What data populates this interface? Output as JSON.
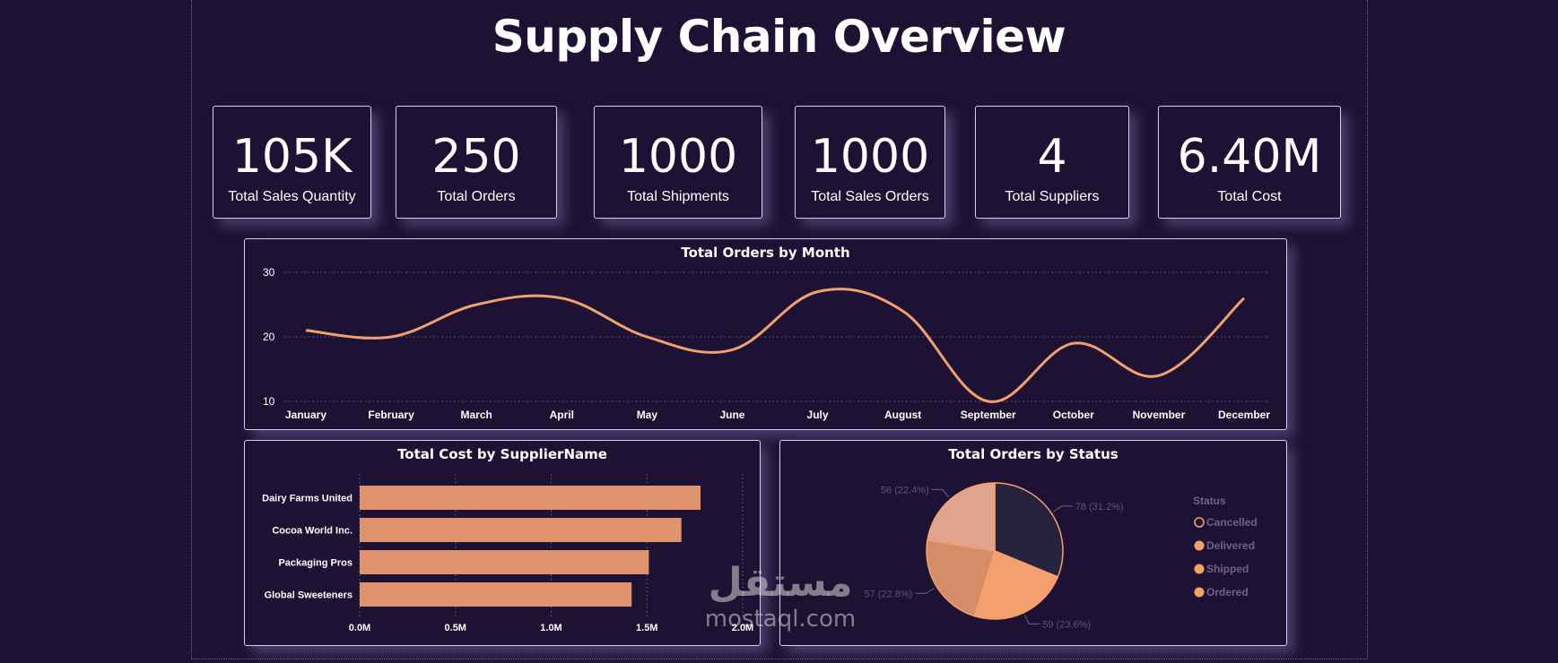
{
  "page": {
    "title": "Supply Chain Overview"
  },
  "kpis": [
    {
      "value": "105K",
      "label": "Total Sales Quantity"
    },
    {
      "value": "250",
      "label": "Total Orders"
    },
    {
      "value": "1000",
      "label": "Total Shipments"
    },
    {
      "value": "1000",
      "label": "Total Sales Orders"
    },
    {
      "value": "4",
      "label": "Total Suppliers"
    },
    {
      "value": "6.40M",
      "label": "Total Cost"
    }
  ],
  "watermark": {
    "arabic": "مستقل",
    "latin": "mostaql.com"
  },
  "chart_data": [
    {
      "type": "line",
      "title": "Total Orders by Month",
      "categories": [
        "January",
        "February",
        "March",
        "April",
        "May",
        "June",
        "July",
        "August",
        "September",
        "October",
        "November",
        "December"
      ],
      "values": [
        21,
        20,
        25,
        26,
        20,
        18,
        27,
        24,
        10,
        19,
        14,
        26
      ],
      "yticks": [
        10,
        20,
        30
      ],
      "ylim": [
        10,
        30
      ],
      "grid": true,
      "color": "#f3a06e"
    },
    {
      "type": "bar",
      "orientation": "horizontal",
      "title": "Total Cost by SupplierName",
      "categories": [
        "Dairy Farms United",
        "Cocoa World Inc.",
        "Packaging Pros",
        "Global Sweeteners"
      ],
      "values": [
        1.78,
        1.68,
        1.51,
        1.42
      ],
      "unit": "M",
      "xticks": [
        "0.0M",
        "0.5M",
        "1.0M",
        "1.5M",
        "2.0M"
      ],
      "xlim": [
        0,
        2.0
      ],
      "grid": true,
      "color": "#e0936d"
    },
    {
      "type": "pie",
      "title": "Total Orders by Status",
      "legend_title": "Status",
      "legend_position": "right",
      "slices": [
        {
          "label": "Cancelled",
          "value": 78,
          "text": "78 (31.2%)",
          "color": "#26243d"
        },
        {
          "label": "Delivered",
          "value": 59,
          "text": "59 (23.6%)",
          "color": "#f3a06e"
        },
        {
          "label": "Shipped",
          "value": 57,
          "text": "57 (22.8%)",
          "color": "#d58c68"
        },
        {
          "label": "Ordered",
          "value": 56,
          "text": "56 (22.4%)",
          "color": "#e0a38b"
        }
      ]
    }
  ]
}
